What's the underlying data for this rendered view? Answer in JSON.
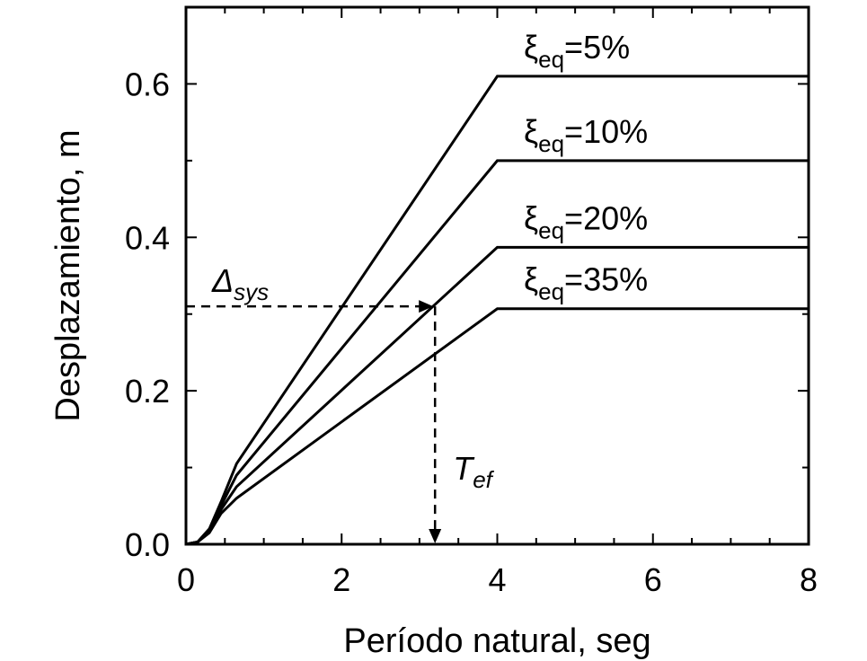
{
  "chart_data": {
    "type": "line",
    "title": "",
    "xlabel": "Período natural, seg",
    "ylabel": "Desplazamiento, m",
    "xlim": [
      0,
      8
    ],
    "ylim": [
      0,
      0.7
    ],
    "x_ticks": [
      "0",
      "2",
      "4",
      "6",
      "8"
    ],
    "y_ticks": [
      "0.0",
      "0.2",
      "0.4",
      "0.6"
    ],
    "x_tick_values": [
      0,
      2,
      4,
      6,
      8
    ],
    "y_tick_values": [
      0,
      0.2,
      0.4,
      0.6
    ],
    "x_minor_step": 0.5,
    "y_minor_step": 0.1,
    "grid": false,
    "series": [
      {
        "symbol": "ξ",
        "subscript": "eq",
        "suffix": "=5%",
        "x": [
          0,
          0.15,
          0.3,
          0.45,
          0.65,
          4.0,
          8.0
        ],
        "y": [
          0,
          0.003,
          0.02,
          0.055,
          0.105,
          0.61,
          0.61
        ]
      },
      {
        "symbol": "ξ",
        "subscript": "eq",
        "suffix": "=10%",
        "x": [
          0,
          0.15,
          0.3,
          0.45,
          0.65,
          4.0,
          8.0
        ],
        "y": [
          0,
          0.003,
          0.018,
          0.05,
          0.09,
          0.5,
          0.5
        ]
      },
      {
        "symbol": "ξ",
        "subscript": "eq",
        "suffix": "=20%",
        "x": [
          0,
          0.15,
          0.3,
          0.45,
          0.65,
          4.0,
          8.0
        ],
        "y": [
          0,
          0.003,
          0.017,
          0.045,
          0.075,
          0.387,
          0.387
        ]
      },
      {
        "symbol": "ξ",
        "subscript": "eq",
        "suffix": "=35%",
        "x": [
          0,
          0.15,
          0.3,
          0.45,
          0.65,
          4.0,
          8.0
        ],
        "y": [
          0,
          0.003,
          0.015,
          0.04,
          0.06,
          0.307,
          0.307
        ]
      }
    ],
    "annotations": {
      "delta_sys": {
        "symbol": "Δ",
        "subscript": "sys",
        "y": 0.31
      },
      "t_ef": {
        "symbol": "T",
        "subscript": "ef",
        "x": 3.2
      }
    }
  }
}
